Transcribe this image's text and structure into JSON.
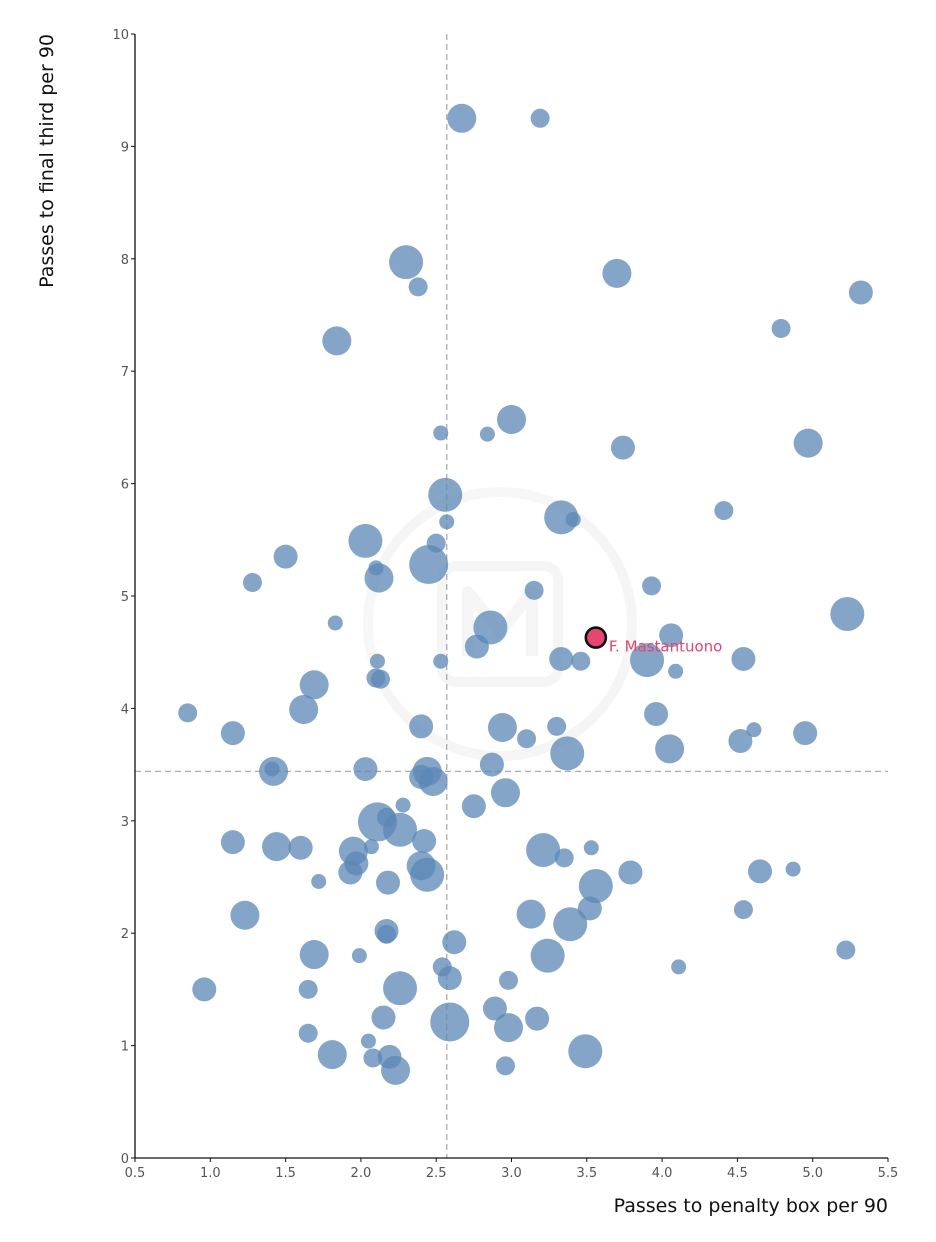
{
  "chart_data": {
    "type": "scatter",
    "xlabel": "Passes to penalty box per 90",
    "ylabel": "Passes to final third per 90",
    "xlim": [
      0.5,
      5.5
    ],
    "ylim": [
      0,
      10
    ],
    "xticks": [
      0.5,
      1.0,
      1.5,
      2.0,
      2.5,
      3.0,
      3.5,
      4.0,
      4.5,
      5.0,
      5.5
    ],
    "yticks": [
      0,
      1,
      2,
      3,
      4,
      5,
      6,
      7,
      8,
      9,
      10
    ],
    "xtick_labels": [
      "0.5",
      "1.0",
      "1.5",
      "2.0",
      "2.5",
      "3.0",
      "3.5",
      "4.0",
      "4.5",
      "5.0",
      "5.5"
    ],
    "ytick_labels": [
      "0",
      "1",
      "2",
      "3",
      "4",
      "5",
      "6",
      "7",
      "8",
      "9",
      "10"
    ],
    "reference_lines": {
      "x": 2.57,
      "y": 3.44
    },
    "grid": false,
    "colors": {
      "points": "#5b87b5",
      "highlight_fill": "#e8466e",
      "highlight_text": "#e0466e",
      "reference_line": "#aaaaaa"
    },
    "highlight": {
      "label": "F. Mastantuono",
      "x": 3.56,
      "y": 4.63
    },
    "points": [
      {
        "x": 2.67,
        "y": 9.25,
        "size": 3
      },
      {
        "x": 3.19,
        "y": 9.25,
        "size": 1
      },
      {
        "x": 2.3,
        "y": 7.97,
        "size": 4
      },
      {
        "x": 2.38,
        "y": 7.75,
        "size": 1
      },
      {
        "x": 3.7,
        "y": 7.87,
        "size": 3
      },
      {
        "x": 5.32,
        "y": 7.7,
        "size": 2
      },
      {
        "x": 4.79,
        "y": 7.38,
        "size": 1
      },
      {
        "x": 1.84,
        "y": 7.27,
        "size": 3
      },
      {
        "x": 3.0,
        "y": 6.57,
        "size": 3
      },
      {
        "x": 2.53,
        "y": 6.45,
        "size": 0
      },
      {
        "x": 2.84,
        "y": 6.44,
        "size": 0
      },
      {
        "x": 3.74,
        "y": 6.32,
        "size": 2
      },
      {
        "x": 4.97,
        "y": 6.36,
        "size": 3
      },
      {
        "x": 2.56,
        "y": 5.9,
        "size": 4
      },
      {
        "x": 3.33,
        "y": 5.7,
        "size": 4
      },
      {
        "x": 3.41,
        "y": 5.68,
        "size": 0
      },
      {
        "x": 2.57,
        "y": 5.66,
        "size": 0
      },
      {
        "x": 4.41,
        "y": 5.76,
        "size": 1
      },
      {
        "x": 2.03,
        "y": 5.49,
        "size": 4
      },
      {
        "x": 2.5,
        "y": 5.47,
        "size": 1
      },
      {
        "x": 1.5,
        "y": 5.35,
        "size": 2
      },
      {
        "x": 2.45,
        "y": 5.28,
        "size": 5
      },
      {
        "x": 2.1,
        "y": 5.25,
        "size": 0
      },
      {
        "x": 2.12,
        "y": 5.16,
        "size": 3
      },
      {
        "x": 1.28,
        "y": 5.12,
        "size": 1
      },
      {
        "x": 3.15,
        "y": 5.05,
        "size": 1
      },
      {
        "x": 3.93,
        "y": 5.09,
        "size": 1
      },
      {
        "x": 5.23,
        "y": 4.84,
        "size": 4
      },
      {
        "x": 1.83,
        "y": 4.76,
        "size": 0
      },
      {
        "x": 2.86,
        "y": 4.72,
        "size": 4
      },
      {
        "x": 2.77,
        "y": 4.55,
        "size": 2
      },
      {
        "x": 4.06,
        "y": 4.65,
        "size": 2
      },
      {
        "x": 3.9,
        "y": 4.43,
        "size": 4
      },
      {
        "x": 3.33,
        "y": 4.44,
        "size": 2
      },
      {
        "x": 3.46,
        "y": 4.42,
        "size": 1
      },
      {
        "x": 4.54,
        "y": 4.44,
        "size": 2
      },
      {
        "x": 2.11,
        "y": 4.42,
        "size": 0
      },
      {
        "x": 2.53,
        "y": 4.42,
        "size": 0
      },
      {
        "x": 4.09,
        "y": 4.33,
        "size": 0
      },
      {
        "x": 2.1,
        "y": 4.27,
        "size": 1
      },
      {
        "x": 2.13,
        "y": 4.26,
        "size": 1
      },
      {
        "x": 1.69,
        "y": 4.21,
        "size": 3
      },
      {
        "x": 1.62,
        "y": 3.99,
        "size": 3
      },
      {
        "x": 0.85,
        "y": 3.96,
        "size": 1
      },
      {
        "x": 3.96,
        "y": 3.95,
        "size": 2
      },
      {
        "x": 1.15,
        "y": 3.78,
        "size": 2
      },
      {
        "x": 2.4,
        "y": 3.84,
        "size": 2
      },
      {
        "x": 2.94,
        "y": 3.83,
        "size": 3
      },
      {
        "x": 3.3,
        "y": 3.84,
        "size": 1
      },
      {
        "x": 4.61,
        "y": 3.81,
        "size": 0
      },
      {
        "x": 4.95,
        "y": 3.78,
        "size": 2
      },
      {
        "x": 3.1,
        "y": 3.73,
        "size": 1
      },
      {
        "x": 4.52,
        "y": 3.71,
        "size": 2
      },
      {
        "x": 4.05,
        "y": 3.64,
        "size": 3
      },
      {
        "x": 3.37,
        "y": 3.6,
        "size": 4
      },
      {
        "x": 2.87,
        "y": 3.5,
        "size": 2
      },
      {
        "x": 1.42,
        "y": 3.44,
        "size": 3
      },
      {
        "x": 1.41,
        "y": 3.46,
        "size": 0
      },
      {
        "x": 2.03,
        "y": 3.46,
        "size": 2
      },
      {
        "x": 2.44,
        "y": 3.44,
        "size": 3
      },
      {
        "x": 2.4,
        "y": 3.39,
        "size": 2
      },
      {
        "x": 2.48,
        "y": 3.35,
        "size": 3
      },
      {
        "x": 2.96,
        "y": 3.25,
        "size": 3
      },
      {
        "x": 2.28,
        "y": 3.14,
        "size": 0
      },
      {
        "x": 2.75,
        "y": 3.13,
        "size": 2
      },
      {
        "x": 2.11,
        "y": 2.99,
        "size": 5
      },
      {
        "x": 2.26,
        "y": 2.92,
        "size": 4
      },
      {
        "x": 2.17,
        "y": 3.03,
        "size": 1
      },
      {
        "x": 1.15,
        "y": 2.81,
        "size": 2
      },
      {
        "x": 1.44,
        "y": 2.77,
        "size": 3
      },
      {
        "x": 1.6,
        "y": 2.76,
        "size": 2
      },
      {
        "x": 2.42,
        "y": 2.82,
        "size": 2
      },
      {
        "x": 1.95,
        "y": 2.73,
        "size": 3
      },
      {
        "x": 2.07,
        "y": 2.77,
        "size": 0
      },
      {
        "x": 3.21,
        "y": 2.74,
        "size": 4
      },
      {
        "x": 3.35,
        "y": 2.67,
        "size": 1
      },
      {
        "x": 3.53,
        "y": 2.76,
        "size": 0
      },
      {
        "x": 1.97,
        "y": 2.62,
        "size": 2
      },
      {
        "x": 2.4,
        "y": 2.6,
        "size": 3
      },
      {
        "x": 1.93,
        "y": 2.54,
        "size": 2
      },
      {
        "x": 2.44,
        "y": 2.52,
        "size": 4
      },
      {
        "x": 1.72,
        "y": 2.46,
        "size": 0
      },
      {
        "x": 2.18,
        "y": 2.45,
        "size": 2
      },
      {
        "x": 3.79,
        "y": 2.54,
        "size": 2
      },
      {
        "x": 4.65,
        "y": 2.55,
        "size": 2
      },
      {
        "x": 4.87,
        "y": 2.57,
        "size": 0
      },
      {
        "x": 3.56,
        "y": 2.42,
        "size": 4
      },
      {
        "x": 3.52,
        "y": 2.22,
        "size": 2
      },
      {
        "x": 4.54,
        "y": 2.21,
        "size": 1
      },
      {
        "x": 1.23,
        "y": 2.16,
        "size": 3
      },
      {
        "x": 3.13,
        "y": 2.17,
        "size": 3
      },
      {
        "x": 3.39,
        "y": 2.08,
        "size": 4
      },
      {
        "x": 2.17,
        "y": 2.02,
        "size": 2
      },
      {
        "x": 2.17,
        "y": 1.99,
        "size": 1
      },
      {
        "x": 2.62,
        "y": 1.92,
        "size": 2
      },
      {
        "x": 5.22,
        "y": 1.85,
        "size": 1
      },
      {
        "x": 1.69,
        "y": 1.81,
        "size": 3
      },
      {
        "x": 1.99,
        "y": 1.8,
        "size": 0
      },
      {
        "x": 3.24,
        "y": 1.8,
        "size": 4
      },
      {
        "x": 2.54,
        "y": 1.7,
        "size": 1
      },
      {
        "x": 4.11,
        "y": 1.7,
        "size": 0
      },
      {
        "x": 2.59,
        "y": 1.6,
        "size": 2
      },
      {
        "x": 2.98,
        "y": 1.58,
        "size": 1
      },
      {
        "x": 0.96,
        "y": 1.5,
        "size": 2
      },
      {
        "x": 1.65,
        "y": 1.5,
        "size": 1
      },
      {
        "x": 2.26,
        "y": 1.51,
        "size": 4
      },
      {
        "x": 2.89,
        "y": 1.33,
        "size": 2
      },
      {
        "x": 2.15,
        "y": 1.25,
        "size": 2
      },
      {
        "x": 2.59,
        "y": 1.21,
        "size": 5
      },
      {
        "x": 2.98,
        "y": 1.16,
        "size": 3
      },
      {
        "x": 3.17,
        "y": 1.24,
        "size": 2
      },
      {
        "x": 1.65,
        "y": 1.11,
        "size": 1
      },
      {
        "x": 2.05,
        "y": 1.04,
        "size": 0
      },
      {
        "x": 1.81,
        "y": 0.92,
        "size": 3
      },
      {
        "x": 2.08,
        "y": 0.89,
        "size": 1
      },
      {
        "x": 2.19,
        "y": 0.9,
        "size": 2
      },
      {
        "x": 2.23,
        "y": 0.78,
        "size": 3
      },
      {
        "x": 3.49,
        "y": 0.95,
        "size": 4
      },
      {
        "x": 2.96,
        "y": 0.82,
        "size": 1
      }
    ]
  }
}
